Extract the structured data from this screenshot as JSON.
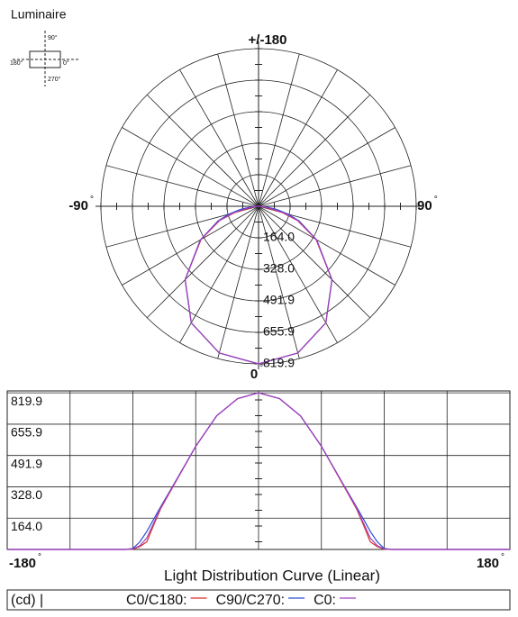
{
  "luminaire": {
    "title": "Luminaire",
    "labels": [
      "90°",
      "0°",
      "180°",
      "270°"
    ]
  },
  "chart_data": [
    {
      "type": "polar",
      "angle_labels": [
        "+/-180",
        "-90",
        "90",
        "0"
      ],
      "degree_sign": "°",
      "angle_grid_step": 15,
      "rlim": [
        0,
        819.9
      ],
      "rticks": [
        {
          "value": 164,
          "label": "164.0"
        },
        {
          "value": 328,
          "label": "328.0"
        },
        491.9,
        655.9,
        819.9
      ],
      "x": [
        -180,
        -150,
        -120,
        -95,
        -90,
        -85,
        -80,
        -75,
        -70,
        -60,
        -45,
        -30,
        -15,
        0,
        15,
        30,
        45,
        60,
        70,
        75,
        80,
        85,
        90,
        95,
        120,
        150,
        180
      ],
      "series": [
        {
          "name": "C0/C180:",
          "color": "#d9302a",
          "values": [
            0,
            0,
            0,
            0,
            2,
            15,
            40,
            130,
            215,
            345,
            540,
            700,
            790,
            819.9,
            790,
            700,
            540,
            345,
            215,
            130,
            40,
            15,
            2,
            0,
            0,
            0,
            0
          ]
        },
        {
          "name": "C90/C270:",
          "color": "#2a4fcf",
          "values": [
            0,
            0,
            0,
            0,
            5,
            40,
            95,
            160,
            225,
            350,
            540,
            700,
            790,
            819.9,
            790,
            700,
            540,
            350,
            225,
            160,
            95,
            40,
            5,
            0,
            0,
            0,
            0
          ]
        },
        {
          "name": "C0:",
          "color": "#a040c0",
          "values": [
            0,
            0,
            0,
            0,
            3,
            20,
            60,
            140,
            220,
            348,
            540,
            700,
            790,
            819.9,
            790,
            700,
            540,
            348,
            220,
            140,
            60,
            20,
            3,
            0,
            0,
            0,
            0
          ]
        }
      ]
    },
    {
      "type": "line",
      "title": "Light Distribution Curve (Linear)",
      "unit": "(cd) |",
      "degree_sign": "°",
      "xlim": [
        -180,
        180
      ],
      "xticks": [
        -180,
        180
      ],
      "xgrid": [
        -135,
        -90,
        -45,
        0,
        45,
        90,
        135
      ],
      "ylim": [
        0,
        830
      ],
      "yticks": [
        {
          "value": 164,
          "label": "164.0"
        },
        {
          "value": 328,
          "label": "328.0"
        },
        491.9,
        655.9,
        819.9
      ],
      "x": [
        -180,
        -150,
        -120,
        -95,
        -90,
        -85,
        -80,
        -75,
        -70,
        -60,
        -45,
        -30,
        -15,
        0,
        15,
        30,
        45,
        60,
        70,
        75,
        80,
        85,
        90,
        95,
        120,
        150,
        180
      ],
      "series": [
        {
          "name": "C0/C180:",
          "color": "#d9302a",
          "values": [
            0,
            0,
            0,
            0,
            2,
            15,
            40,
            130,
            215,
            345,
            540,
            700,
            790,
            819.9,
            790,
            700,
            540,
            345,
            215,
            130,
            40,
            15,
            2,
            0,
            0,
            0,
            0
          ]
        },
        {
          "name": "C90/C270:",
          "color": "#2a4fcf",
          "values": [
            0,
            0,
            0,
            0,
            5,
            40,
            95,
            160,
            225,
            350,
            540,
            700,
            790,
            819.9,
            790,
            700,
            540,
            350,
            225,
            160,
            95,
            40,
            5,
            0,
            0,
            0,
            0
          ]
        },
        {
          "name": "C0:",
          "color": "#a040c0",
          "values": [
            0,
            0,
            0,
            0,
            3,
            20,
            60,
            140,
            220,
            348,
            540,
            700,
            790,
            819.9,
            790,
            700,
            540,
            348,
            220,
            140,
            60,
            20,
            3,
            0,
            0,
            0,
            0
          ]
        }
      ]
    }
  ]
}
